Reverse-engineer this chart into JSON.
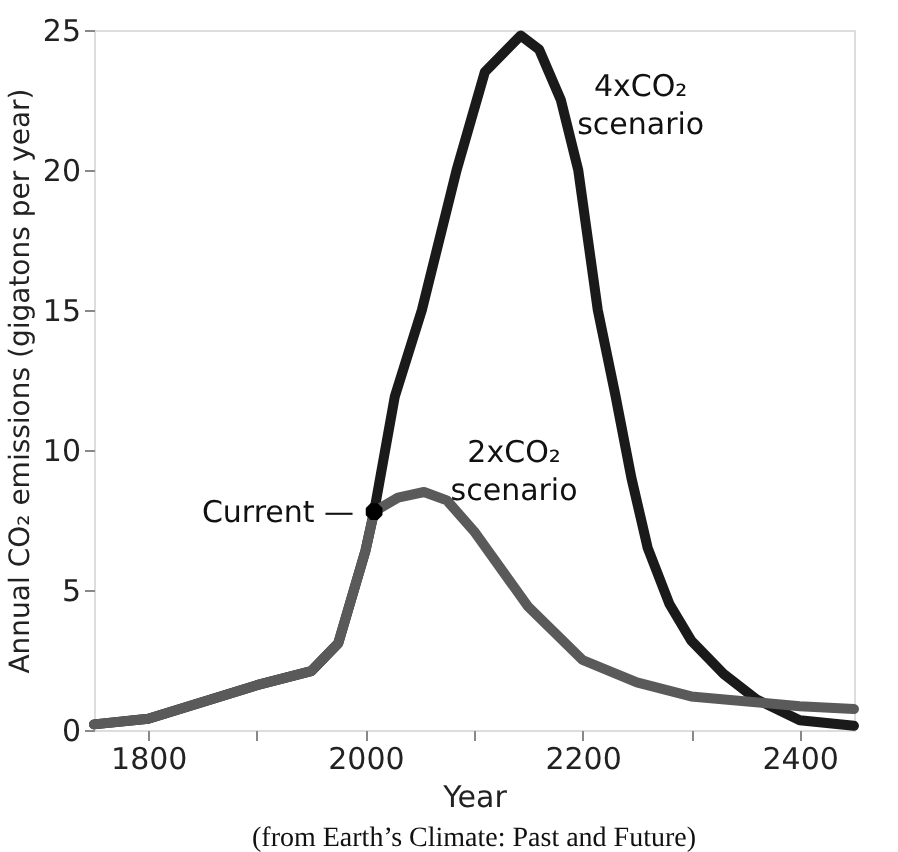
{
  "chart_data": {
    "type": "line",
    "xlabel": "Year",
    "ylabel": "Annual CO₂ emissions (gigatons per year)",
    "xlim": [
      1750,
      2450
    ],
    "ylim": [
      0,
      25
    ],
    "xticks": [
      1800,
      {
        "value": 1900,
        "label": null
      },
      2000,
      {
        "value": 2100,
        "label": null
      },
      2200,
      {
        "value": 2300,
        "label": null
      },
      2400
    ],
    "yticks": [
      0,
      5,
      10,
      15,
      20,
      25
    ],
    "grid": false,
    "marker": "none",
    "line_style": "solid",
    "series": [
      {
        "name": "4xCO₂ scenario",
        "color": "#1a1a1a",
        "x": [
          1750,
          1800,
          1900,
          1950,
          1975,
          2000,
          2008,
          2027,
          2052,
          2084,
          2110,
          2143,
          2160,
          2180,
          2196,
          2214,
          2230,
          2245,
          2260,
          2280,
          2300,
          2330,
          2360,
          2400,
          2450
        ],
        "values": [
          0.2,
          0.4,
          1.6,
          2.1,
          3.1,
          6.4,
          7.8,
          11.9,
          15,
          20,
          23.5,
          24.8,
          24.3,
          22.5,
          20,
          15,
          12,
          9,
          6.5,
          4.5,
          3.2,
          2,
          1.1,
          0.35,
          0.15
        ]
      },
      {
        "name": "2xCO₂ scenario",
        "color": "#5a5a5a",
        "x": [
          1750,
          1800,
          1900,
          1950,
          1975,
          2000,
          2008,
          2030,
          2054,
          2075,
          2100,
          2150,
          2200,
          2250,
          2300,
          2400,
          2450
        ],
        "values": [
          0.2,
          0.4,
          1.6,
          2.1,
          3.1,
          6.4,
          7.8,
          8.3,
          8.5,
          8.2,
          7.1,
          4.4,
          2.5,
          1.7,
          1.2,
          0.85,
          0.75
        ]
      }
    ],
    "annotations": [
      {
        "text": "Current —",
        "x": 2008,
        "y": 7.8
      },
      "(from Earth’s Climate: Past and Future)"
    ]
  }
}
